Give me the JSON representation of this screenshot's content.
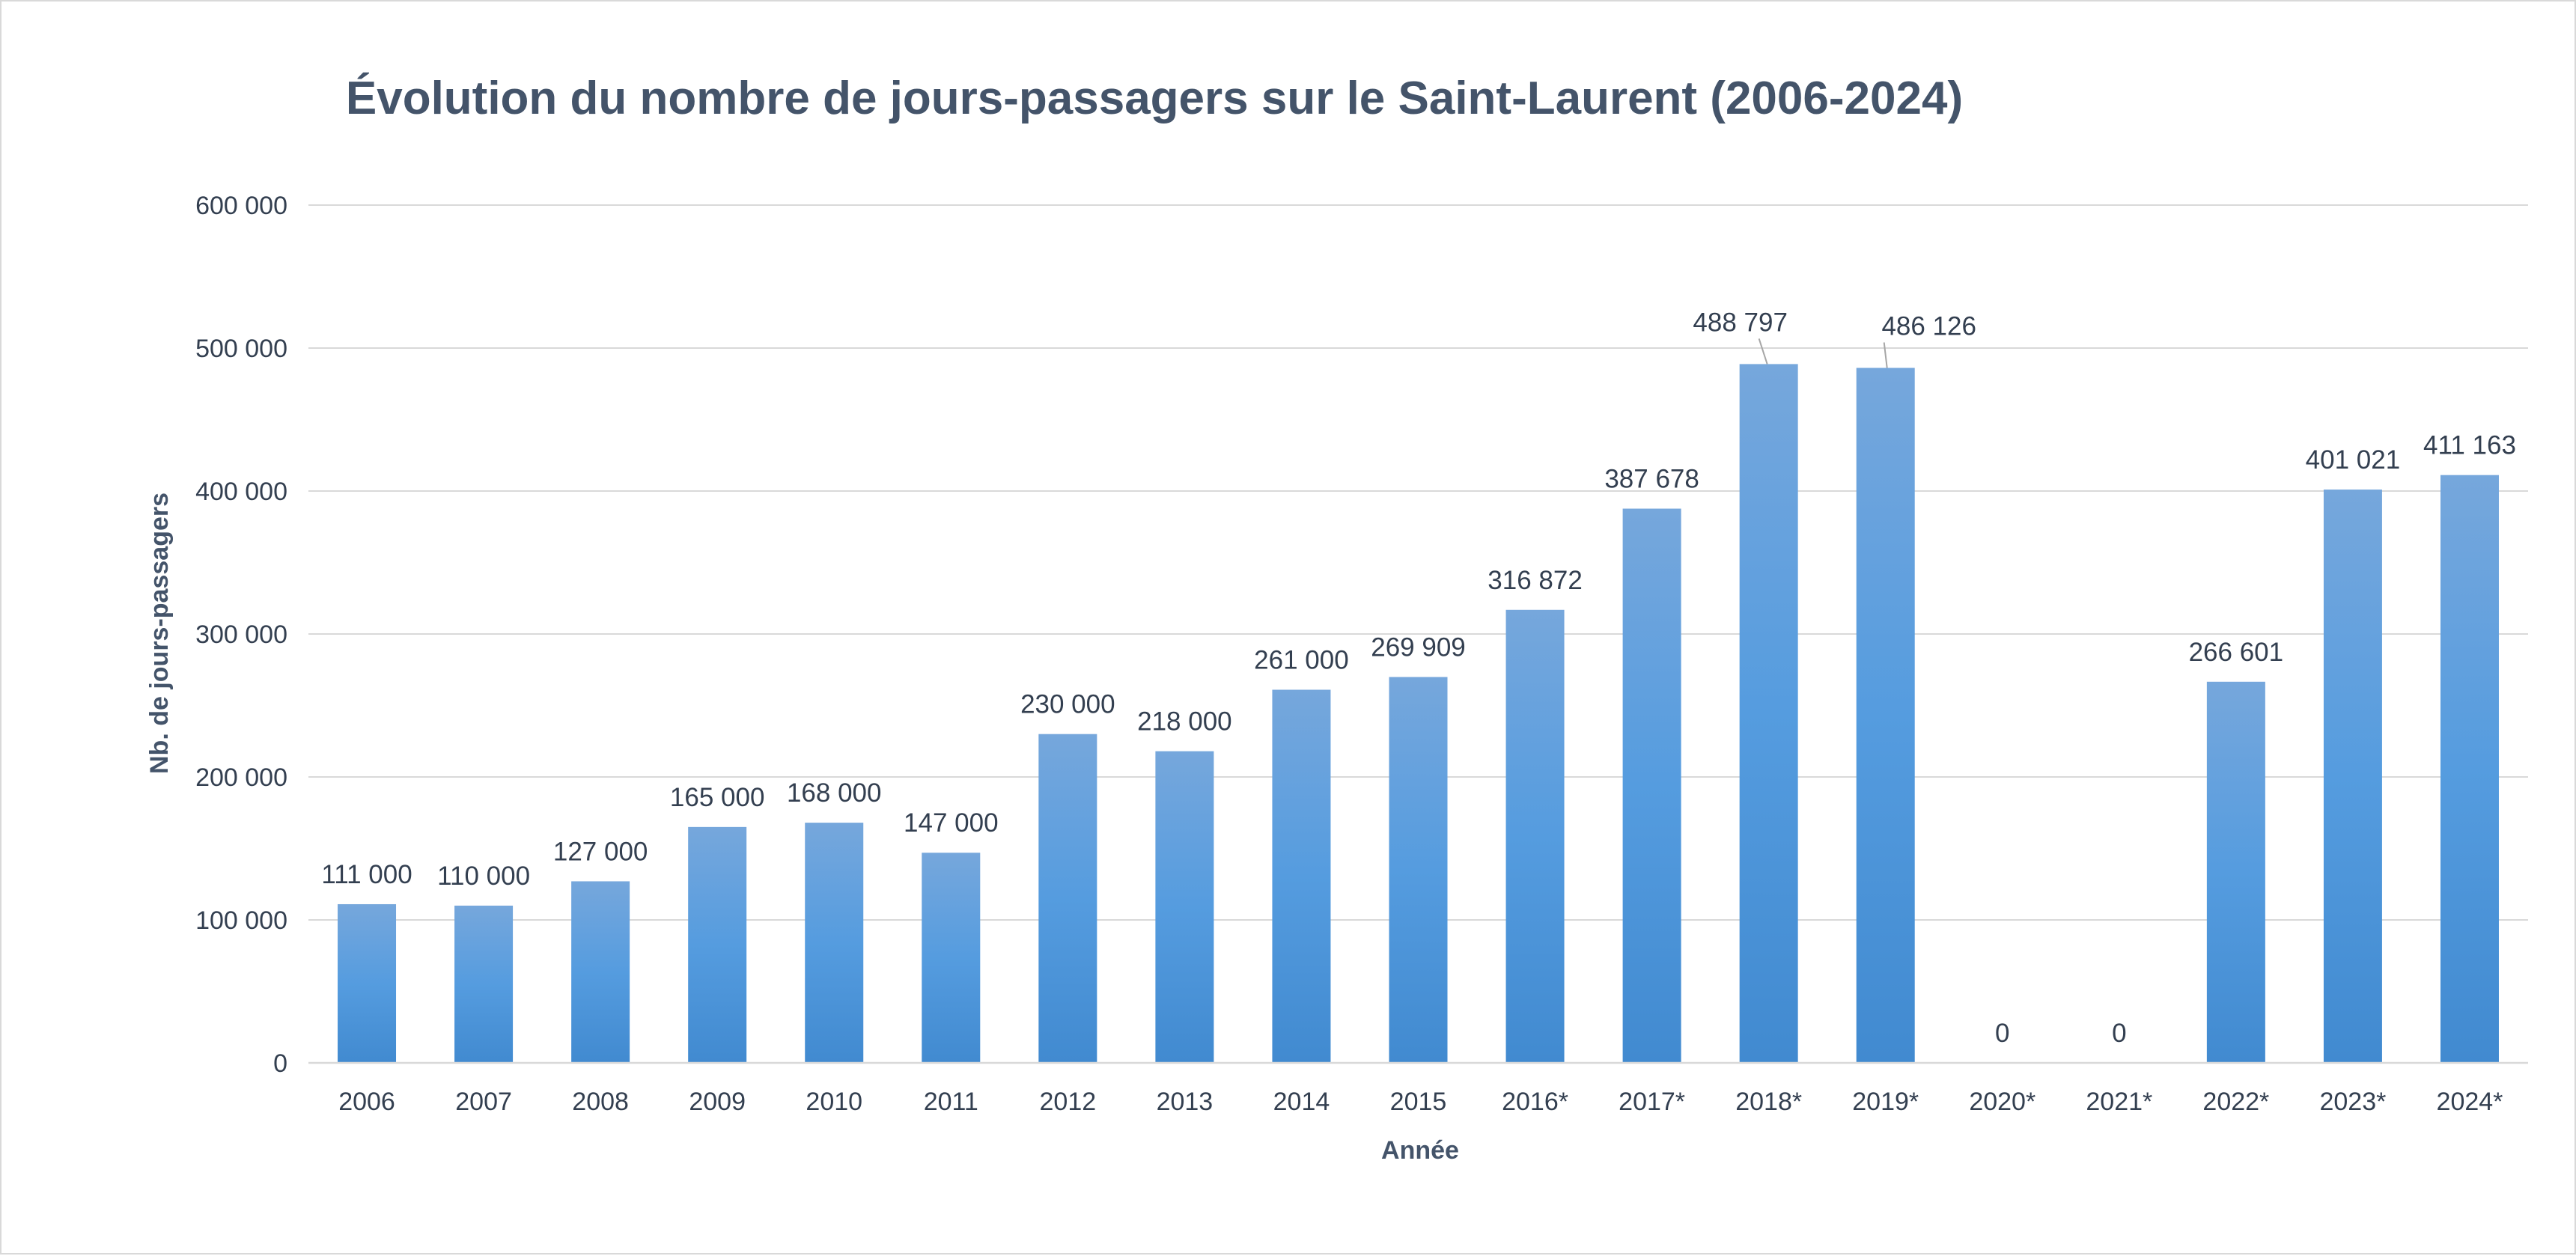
{
  "chart_data": {
    "type": "bar",
    "title": "Évolution du nombre de jours-passagers sur le Saint-Laurent (2006-2024)",
    "xlabel": "Année",
    "ylabel": "Nb. de jours-passagers",
    "ylim": [
      0,
      600000
    ],
    "ytick_values": [
      0,
      100000,
      200000,
      300000,
      400000,
      500000,
      600000
    ],
    "ytick_labels": [
      "0",
      "100 000",
      "200 000",
      "300 000",
      "400 000",
      "500 000",
      "600 000"
    ],
    "categories": [
      "2006",
      "2007",
      "2008",
      "2009",
      "2010",
      "2011",
      "2012",
      "2013",
      "2014",
      "2015",
      "2016*",
      "2017*",
      "2018*",
      "2019*",
      "2020*",
      "2021*",
      "2022*",
      "2023*",
      "2024*"
    ],
    "values": [
      111000,
      110000,
      127000,
      165000,
      168000,
      147000,
      230000,
      218000,
      261000,
      269909,
      316872,
      387678,
      488797,
      486126,
      0,
      0,
      266601,
      401021,
      411163
    ],
    "value_labels": [
      "111 000",
      "110 000",
      "127 000",
      "165 000",
      "168 000",
      "147 000",
      "230 000",
      "218 000",
      "261 000",
      "269 909",
      "316 872",
      "387 678",
      "488 797",
      "486 126",
      "0",
      "0",
      "266 601",
      "401 021",
      "411 163"
    ],
    "grid": true,
    "legend": "none",
    "colors": {
      "bar_top": "#76a7dc",
      "bar_mid": "#559cdf",
      "bar_bottom": "#418ad0",
      "grid": "#d9d9d9",
      "text": "#44546a"
    }
  }
}
